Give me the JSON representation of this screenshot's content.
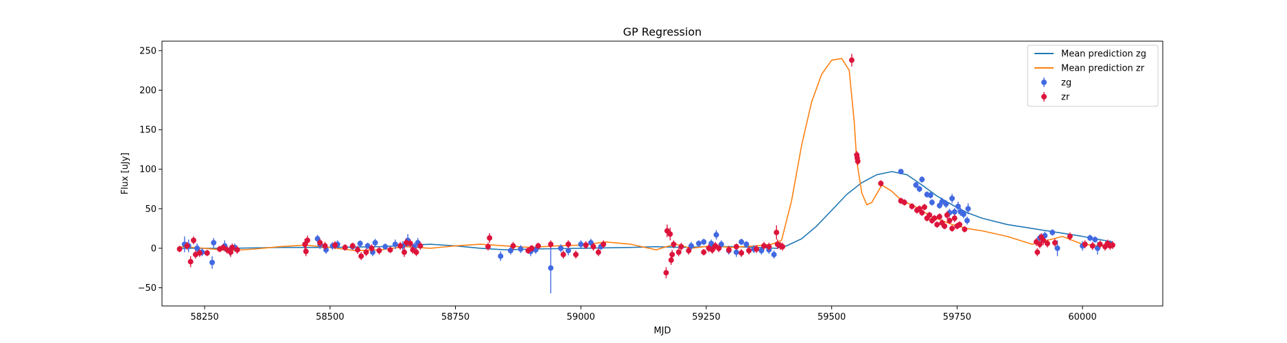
{
  "chart_data": {
    "type": "scatter",
    "title": "GP Regression",
    "xlabel": "MJD",
    "ylabel": "Flux [uJy]",
    "xlim": [
      58165,
      60160
    ],
    "ylim": [
      -73,
      262
    ],
    "xticks": [
      58250,
      58500,
      58750,
      59000,
      59250,
      59500,
      59750,
      60000
    ],
    "yticks": [
      -50,
      0,
      50,
      100,
      150,
      200,
      250
    ],
    "legend_position": "upper right",
    "grid": false,
    "colors": {
      "zg_line": "#1f77b4",
      "zr_line": "#ff7f0e",
      "zg_points": "#4169e1",
      "zr_points": "#dc143c"
    },
    "lines": [
      {
        "name": "Mean prediction zg",
        "color": "#1f77b4",
        "x": [
          58200,
          58300,
          58400,
          58500,
          58600,
          58700,
          58750,
          58800,
          58850,
          58900,
          59000,
          59100,
          59150,
          59200,
          59250,
          59300,
          59350,
          59390,
          59410,
          59440,
          59470,
          59500,
          59530,
          59560,
          59590,
          59620,
          59650,
          59680,
          59710,
          59740,
          59770,
          59800,
          59850,
          59900,
          59950,
          60000,
          60060
        ],
        "y": [
          0,
          0,
          1,
          1,
          2,
          5,
          3,
          0,
          -2,
          -1,
          0,
          1,
          2,
          1,
          2,
          2,
          1,
          0,
          3,
          12,
          28,
          48,
          68,
          83,
          93,
          97,
          93,
          80,
          66,
          55,
          45,
          38,
          30,
          25,
          20,
          15,
          8
        ]
      },
      {
        "name": "Mean prediction zr",
        "color": "#ff7f0e",
        "x": [
          58200,
          58250,
          58300,
          58350,
          58400,
          58450,
          58500,
          58550,
          58600,
          58650,
          58700,
          58750,
          58800,
          58850,
          58900,
          58950,
          59000,
          59050,
          59100,
          59150,
          59170,
          59190,
          59220,
          59260,
          59300,
          59350,
          59380,
          59400,
          59420,
          59440,
          59460,
          59480,
          59500,
          59520,
          59535,
          59545,
          59550,
          59560,
          59570,
          59580,
          59600,
          59620,
          59640,
          59660,
          59700,
          59740,
          59770,
          59800,
          59850,
          59900,
          59930,
          59960,
          60000,
          60060
        ],
        "y": [
          2,
          0,
          -3,
          -1,
          2,
          4,
          1,
          -3,
          -2,
          2,
          0,
          3,
          5,
          3,
          1,
          3,
          4,
          8,
          5,
          -2,
          2,
          5,
          0,
          3,
          1,
          3,
          5,
          10,
          60,
          130,
          185,
          220,
          238,
          240,
          225,
          160,
          110,
          70,
          55,
          58,
          80,
          72,
          60,
          55,
          40,
          30,
          25,
          22,
          15,
          5,
          10,
          15,
          5,
          2
        ]
      }
    ],
    "series": [
      {
        "name": "zg",
        "color": "#4169e1",
        "points": [
          [
            58210,
            5,
            10
          ],
          [
            58218,
            3,
            8
          ],
          [
            58235,
            0,
            6
          ],
          [
            58245,
            -5,
            5
          ],
          [
            58265,
            -18,
            8
          ],
          [
            58268,
            7,
            6
          ],
          [
            58290,
            3,
            7
          ],
          [
            58300,
            -3,
            6
          ],
          [
            58310,
            1,
            5
          ],
          [
            58475,
            12,
            5
          ],
          [
            58480,
            5,
            6
          ],
          [
            58492,
            -2,
            5
          ],
          [
            58505,
            3,
            5
          ],
          [
            58515,
            5,
            5
          ],
          [
            58545,
            2,
            4
          ],
          [
            58560,
            6,
            4
          ],
          [
            58575,
            3,
            4
          ],
          [
            58585,
            -5,
            5
          ],
          [
            58590,
            7,
            5
          ],
          [
            58610,
            2,
            4
          ],
          [
            58630,
            5,
            6
          ],
          [
            58645,
            3,
            6
          ],
          [
            58655,
            10,
            8
          ],
          [
            58668,
            2,
            5
          ],
          [
            58675,
            7,
            6
          ],
          [
            58840,
            -10,
            6
          ],
          [
            58860,
            -3,
            5
          ],
          [
            58880,
            -1,
            5
          ],
          [
            58900,
            -4,
            6
          ],
          [
            58910,
            -2,
            5
          ],
          [
            58940,
            -25,
            32
          ],
          [
            58960,
            0,
            5
          ],
          [
            58975,
            -3,
            6
          ],
          [
            59000,
            5,
            5
          ],
          [
            59020,
            7,
            5
          ],
          [
            59040,
            2,
            4
          ],
          [
            59220,
            3,
            5
          ],
          [
            59235,
            6,
            4
          ],
          [
            59245,
            8,
            4
          ],
          [
            59260,
            6,
            5
          ],
          [
            59270,
            17,
            6
          ],
          [
            59280,
            5,
            5
          ],
          [
            59295,
            -3,
            5
          ],
          [
            59310,
            -5,
            6
          ],
          [
            59320,
            8,
            4
          ],
          [
            59330,
            5,
            4
          ],
          [
            59345,
            -1,
            5
          ],
          [
            59360,
            -3,
            5
          ],
          [
            59375,
            -2,
            5
          ],
          [
            59385,
            -8,
            5
          ],
          [
            59638,
            97,
            3
          ],
          [
            59668,
            80,
            4
          ],
          [
            59675,
            75,
            4
          ],
          [
            59680,
            87,
            4
          ],
          [
            59690,
            68,
            4
          ],
          [
            59697,
            67,
            4
          ],
          [
            59700,
            58,
            4
          ],
          [
            59715,
            54,
            4
          ],
          [
            59720,
            59,
            5
          ],
          [
            59728,
            56,
            5
          ],
          [
            59735,
            45,
            5
          ],
          [
            59740,
            63,
            6
          ],
          [
            59745,
            46,
            5
          ],
          [
            59752,
            53,
            6
          ],
          [
            59757,
            46,
            5
          ],
          [
            59763,
            43,
            5
          ],
          [
            59770,
            35,
            5
          ],
          [
            59772,
            50,
            7
          ],
          [
            59915,
            13,
            5
          ],
          [
            59925,
            16,
            5
          ],
          [
            59940,
            20,
            4
          ],
          [
            59950,
            0,
            10
          ],
          [
            60000,
            3,
            6
          ],
          [
            60015,
            13,
            4
          ],
          [
            60025,
            11,
            4
          ],
          [
            60030,
            0,
            8
          ],
          [
            60055,
            5,
            5
          ]
        ]
      },
      {
        "name": "zr",
        "color": "#dc143c",
        "points": [
          [
            58200,
            -1,
            4
          ],
          [
            58215,
            3,
            5
          ],
          [
            58222,
            -17,
            7
          ],
          [
            58228,
            10,
            5
          ],
          [
            58232,
            -8,
            5
          ],
          [
            58240,
            -6,
            5
          ],
          [
            58255,
            -6,
            4
          ],
          [
            58280,
            -1,
            4
          ],
          [
            58287,
            1,
            4
          ],
          [
            58295,
            -2,
            5
          ],
          [
            58302,
            -5,
            6
          ],
          [
            58305,
            1,
            5
          ],
          [
            58315,
            -2,
            5
          ],
          [
            58450,
            5,
            7
          ],
          [
            58452,
            -4,
            6
          ],
          [
            58455,
            10,
            6
          ],
          [
            58480,
            7,
            5
          ],
          [
            58490,
            3,
            5
          ],
          [
            58510,
            4,
            5
          ],
          [
            58530,
            1,
            4
          ],
          [
            58545,
            3,
            4
          ],
          [
            58555,
            -2,
            5
          ],
          [
            58562,
            -10,
            5
          ],
          [
            58572,
            -5,
            5
          ],
          [
            58583,
            0,
            5
          ],
          [
            58598,
            -3,
            5
          ],
          [
            58620,
            -2,
            4
          ],
          [
            58640,
            3,
            5
          ],
          [
            58648,
            -5,
            6
          ],
          [
            58652,
            7,
            5
          ],
          [
            58660,
            6,
            5
          ],
          [
            58665,
            -2,
            5
          ],
          [
            58672,
            -5,
            5
          ],
          [
            58680,
            3,
            5
          ],
          [
            58815,
            2,
            5
          ],
          [
            58818,
            13,
            6
          ],
          [
            58865,
            3,
            5
          ],
          [
            58895,
            -3,
            4
          ],
          [
            58902,
            0,
            4
          ],
          [
            58915,
            3,
            4
          ],
          [
            58940,
            5,
            5
          ],
          [
            58965,
            -8,
            5
          ],
          [
            58975,
            5,
            5
          ],
          [
            58990,
            -8,
            5
          ],
          [
            59010,
            4,
            5
          ],
          [
            59025,
            2,
            5
          ],
          [
            59035,
            -5,
            5
          ],
          [
            59045,
            5,
            5
          ],
          [
            59170,
            -31,
            7
          ],
          [
            59172,
            22,
            8
          ],
          [
            59178,
            18,
            8
          ],
          [
            59180,
            -15,
            6
          ],
          [
            59182,
            -8,
            6
          ],
          [
            59185,
            5,
            5
          ],
          [
            59195,
            -5,
            5
          ],
          [
            59200,
            2,
            5
          ],
          [
            59215,
            -3,
            5
          ],
          [
            59245,
            -5,
            4
          ],
          [
            59255,
            0,
            5
          ],
          [
            59262,
            -2,
            5
          ],
          [
            59268,
            3,
            5
          ],
          [
            59275,
            0,
            5
          ],
          [
            59295,
            -2,
            5
          ],
          [
            59310,
            2,
            4
          ],
          [
            59320,
            -6,
            5
          ],
          [
            59335,
            -3,
            5
          ],
          [
            59350,
            -1,
            5
          ],
          [
            59365,
            3,
            5
          ],
          [
            59375,
            2,
            5
          ],
          [
            59390,
            20,
            9
          ],
          [
            59392,
            5,
            6
          ],
          [
            59398,
            3,
            5
          ],
          [
            59402,
            2,
            5
          ],
          [
            59540,
            238,
            8
          ],
          [
            59550,
            118,
            5
          ],
          [
            59551,
            114,
            5
          ],
          [
            59552,
            110,
            5
          ],
          [
            59598,
            82,
            4
          ],
          [
            59638,
            60,
            4
          ],
          [
            59645,
            58,
            4
          ],
          [
            59660,
            53,
            4
          ],
          [
            59670,
            48,
            4
          ],
          [
            59675,
            50,
            4
          ],
          [
            59680,
            45,
            4
          ],
          [
            59685,
            52,
            4
          ],
          [
            59690,
            38,
            4
          ],
          [
            59695,
            42,
            4
          ],
          [
            59700,
            35,
            4
          ],
          [
            59705,
            38,
            4
          ],
          [
            59710,
            30,
            4
          ],
          [
            59715,
            40,
            4
          ],
          [
            59720,
            32,
            5
          ],
          [
            59725,
            28,
            4
          ],
          [
            59730,
            42,
            5
          ],
          [
            59735,
            35,
            4
          ],
          [
            59740,
            25,
            4
          ],
          [
            59745,
            38,
            5
          ],
          [
            59750,
            28,
            4
          ],
          [
            59755,
            30,
            4
          ],
          [
            59765,
            24,
            4
          ],
          [
            59908,
            8,
            5
          ],
          [
            59910,
            -5,
            5
          ],
          [
            59915,
            5,
            5
          ],
          [
            59918,
            14,
            5
          ],
          [
            59922,
            10,
            6
          ],
          [
            59930,
            6,
            5
          ],
          [
            59945,
            7,
            5
          ],
          [
            59975,
            15,
            5
          ],
          [
            60005,
            5,
            5
          ],
          [
            60020,
            3,
            5
          ],
          [
            60035,
            5,
            5
          ],
          [
            60045,
            2,
            5
          ],
          [
            60050,
            6,
            5
          ],
          [
            60055,
            3,
            5
          ],
          [
            60060,
            4,
            5
          ]
        ]
      }
    ]
  }
}
